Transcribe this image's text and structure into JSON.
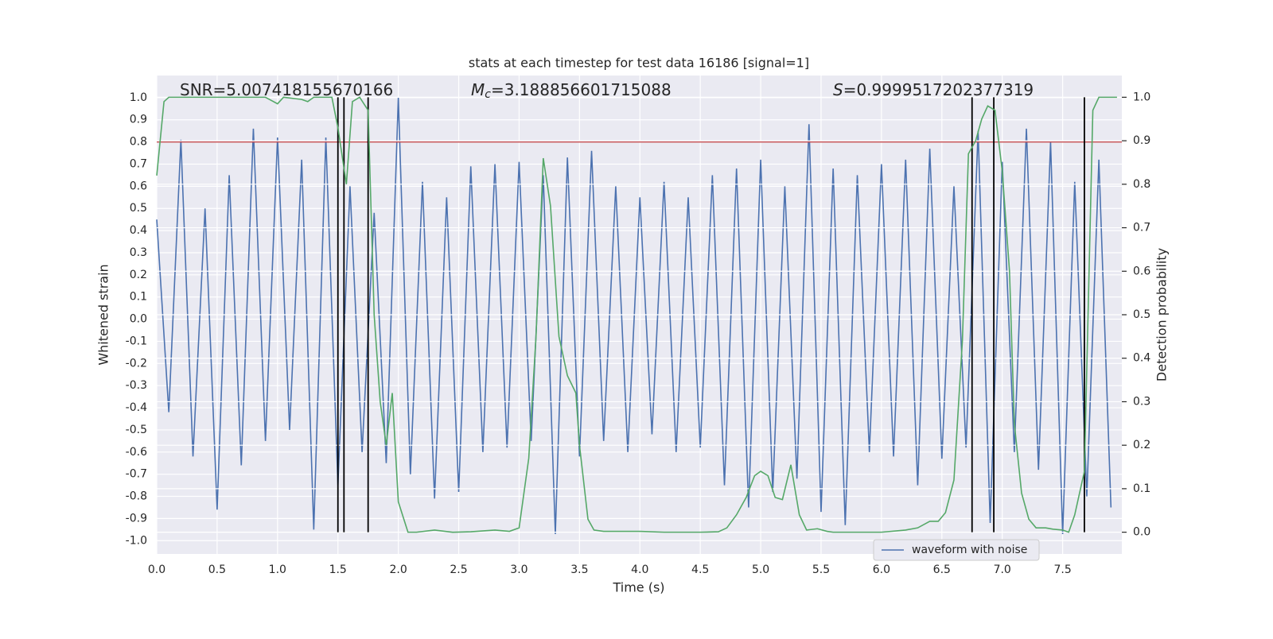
{
  "chart_data": {
    "type": "line",
    "title": "stats at each timestep for test data 16186 [signal=1]",
    "x_label": "Time (s)",
    "y_label": "Whitened strain",
    "y2_label": "Detection probability",
    "annotations": [
      {
        "text": "SNR=5.007418155670166"
      },
      {
        "symbol": "M",
        "subscript": "c",
        "text": "=3.188856601715088"
      },
      {
        "symbol": "S",
        "text": "=0.9999517202377319"
      }
    ],
    "xlim": [
      0,
      7.99
    ],
    "ylim": [
      -1.06,
      1.1
    ],
    "y2lim": [
      -0.05,
      1.05
    ],
    "xticks": [
      {
        "value": 0,
        "label": "0.0"
      },
      {
        "value": 0.5,
        "label": "0.5"
      },
      {
        "value": 1,
        "label": "1.0"
      },
      {
        "value": 1.5,
        "label": "1.5"
      },
      {
        "value": 2,
        "label": "2.0"
      },
      {
        "value": 2.5,
        "label": "2.5"
      },
      {
        "value": 3,
        "label": "3.0"
      },
      {
        "value": 3.5,
        "label": "3.5"
      },
      {
        "value": 4,
        "label": "4.0"
      },
      {
        "value": 4.5,
        "label": "4.5"
      },
      {
        "value": 5,
        "label": "5.0"
      },
      {
        "value": 5.5,
        "label": "5.5"
      },
      {
        "value": 6,
        "label": "6.0"
      },
      {
        "value": 6.5,
        "label": "6.5"
      },
      {
        "value": 7,
        "label": "7.0"
      },
      {
        "value": 7.5,
        "label": "7.5"
      }
    ],
    "yticks": [
      {
        "value": 1,
        "label": "1.0"
      },
      {
        "value": 0.9,
        "label": "0.9"
      },
      {
        "value": 0.8,
        "label": "0.8"
      },
      {
        "value": 0.7,
        "label": "0.7"
      },
      {
        "value": 0.6,
        "label": "0.6"
      },
      {
        "value": 0.5,
        "label": "0.5"
      },
      {
        "value": 0.4,
        "label": "0.4"
      },
      {
        "value": 0.3,
        "label": "0.3"
      },
      {
        "value": 0.2,
        "label": "0.2"
      },
      {
        "value": 0.1,
        "label": "0.1"
      },
      {
        "value": 0,
        "label": "0.0"
      },
      {
        "value": -0.1,
        "label": "-0.1"
      },
      {
        "value": -0.2,
        "label": "-0.2"
      },
      {
        "value": -0.3,
        "label": "-0.3"
      },
      {
        "value": -0.4,
        "label": "-0.4"
      },
      {
        "value": -0.5,
        "label": "-0.5"
      },
      {
        "value": -0.6,
        "label": "-0.6"
      },
      {
        "value": -0.7,
        "label": "-0.7"
      },
      {
        "value": -0.8,
        "label": "-0.8"
      },
      {
        "value": -0.9,
        "label": "-0.9"
      },
      {
        "value": -1,
        "label": "-1.0"
      }
    ],
    "y2ticks": [
      {
        "value": 1,
        "label": "1.0"
      },
      {
        "value": 0.9,
        "label": "0.9"
      },
      {
        "value": 0.8,
        "label": "0.8"
      },
      {
        "value": 0.7,
        "label": "0.7"
      },
      {
        "value": 0.6,
        "label": "0.6"
      },
      {
        "value": 0.5,
        "label": "0.5"
      },
      {
        "value": 0.4,
        "label": "0.4"
      },
      {
        "value": 0.3,
        "label": "0.3"
      },
      {
        "value": 0.2,
        "label": "0.2"
      },
      {
        "value": 0.1,
        "label": "0.1"
      },
      {
        "value": 0,
        "label": "0.0"
      }
    ],
    "grid": true,
    "legend": "lower right",
    "threshold": {
      "value": 0.8,
      "color": "#c44e52"
    },
    "vlines": {
      "x": [
        1.5,
        1.55,
        1.75,
        6.75,
        6.93,
        7.68
      ],
      "y2": [
        0,
        1
      ],
      "color": "#000000"
    },
    "series": [
      {
        "name": "waveform with noise",
        "color": "#4c72b0",
        "x": [
          0,
          0.1,
          0.2,
          0.3,
          0.4,
          0.5,
          0.6,
          0.7,
          0.8,
          0.9,
          1,
          1.1,
          1.2,
          1.3,
          1.4,
          1.5,
          1.6,
          1.7,
          1.8,
          1.9,
          2,
          2.1,
          2.2,
          2.3,
          2.4,
          2.5,
          2.6,
          2.7,
          2.8,
          2.9,
          3,
          3.1,
          3.2,
          3.3,
          3.4,
          3.5,
          3.6,
          3.7,
          3.8,
          3.9,
          4,
          4.1,
          4.2,
          4.3,
          4.4,
          4.5,
          4.6,
          4.7,
          4.8,
          4.9,
          5,
          5.1,
          5.2,
          5.3,
          5.4,
          5.5,
          5.6,
          5.7,
          5.8,
          5.9,
          6,
          6.1,
          6.2,
          6.3,
          6.4,
          6.5,
          6.6,
          6.7,
          6.8,
          6.9,
          7,
          7.1,
          7.2,
          7.3,
          7.4,
          7.5,
          7.6,
          7.7,
          7.8,
          7.9
        ],
        "values": [
          0.45,
          -0.42,
          0.81,
          -0.62,
          0.5,
          -0.86,
          0.65,
          -0.66,
          0.86,
          -0.55,
          0.82,
          -0.5,
          0.72,
          -0.95,
          0.82,
          -0.75,
          0.6,
          -0.6,
          0.48,
          -0.65,
          1.0,
          -0.7,
          0.62,
          -0.81,
          0.55,
          -0.78,
          0.69,
          -0.6,
          0.7,
          -0.58,
          0.71,
          -0.55,
          0.65,
          -0.97,
          0.73,
          -0.62,
          0.76,
          -0.55,
          0.6,
          -0.6,
          0.55,
          -0.52,
          0.62,
          -0.6,
          0.55,
          -0.58,
          0.65,
          -0.75,
          0.68,
          -0.85,
          0.72,
          -0.78,
          0.6,
          -0.72,
          0.88,
          -0.87,
          0.68,
          -0.93,
          0.65,
          -0.6,
          0.7,
          -0.62,
          0.72,
          -0.75,
          0.77,
          -0.63,
          0.6,
          -0.58,
          0.85,
          -0.92,
          0.71,
          -0.6,
          0.86,
          -0.68,
          0.8,
          -0.97,
          0.62,
          -0.8,
          0.72,
          -0.85
        ]
      },
      {
        "color": "#55a868",
        "axis": "y2",
        "x": [
          0,
          0.06,
          0.1,
          0.5,
          0.9,
          1,
          1.05,
          1.2,
          1.25,
          1.3,
          1.45,
          1.5,
          1.57,
          1.62,
          1.68,
          1.75,
          1.8,
          1.85,
          1.9,
          1.95,
          2,
          2.08,
          2.15,
          2.3,
          2.45,
          2.6,
          2.8,
          2.92,
          3,
          3.08,
          3.14,
          3.2,
          3.26,
          3.33,
          3.4,
          3.47,
          3.5,
          3.57,
          3.62,
          3.7,
          4,
          4.2,
          4.5,
          4.65,
          4.72,
          4.8,
          4.88,
          4.95,
          5,
          5.06,
          5.12,
          5.18,
          5.25,
          5.32,
          5.38,
          5.47,
          5.55,
          5.6,
          6,
          6.2,
          6.3,
          6.4,
          6.47,
          6.53,
          6.6,
          6.67,
          6.72,
          6.78,
          6.83,
          6.88,
          6.94,
          7,
          7.06,
          7.1,
          7.16,
          7.22,
          7.28,
          7.36,
          7.42,
          7.5,
          7.55,
          7.6,
          7.68,
          7.75,
          7.8,
          7.95
        ],
        "values": [
          0.82,
          0.99,
          1,
          1,
          1,
          0.985,
          1,
          0.995,
          0.99,
          1,
          1,
          0.93,
          0.8,
          0.99,
          1,
          0.97,
          0.5,
          0.3,
          0.2,
          0.32,
          0.07,
          0,
          0,
          0.005,
          0,
          0.001,
          0.005,
          0.002,
          0.01,
          0.17,
          0.45,
          0.86,
          0.75,
          0.45,
          0.36,
          0.32,
          0.2,
          0.03,
          0.005,
          0.002,
          0.002,
          0,
          0,
          0.001,
          0.01,
          0.04,
          0.08,
          0.13,
          0.14,
          0.13,
          0.08,
          0.075,
          0.155,
          0.04,
          0.005,
          0.008,
          0.002,
          0,
          0,
          0.005,
          0.01,
          0.025,
          0.025,
          0.045,
          0.12,
          0.44,
          0.87,
          0.9,
          0.95,
          0.98,
          0.97,
          0.83,
          0.6,
          0.25,
          0.09,
          0.03,
          0.01,
          0.01,
          0.007,
          0.005,
          0,
          0.04,
          0.14,
          0.97,
          1,
          1
        ]
      }
    ]
  }
}
